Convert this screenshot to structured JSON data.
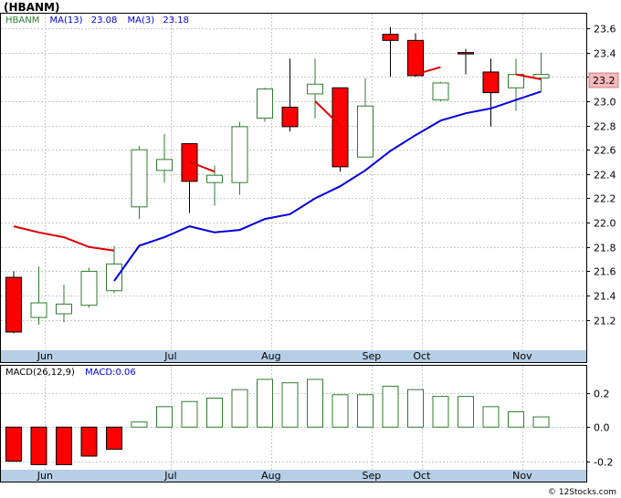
{
  "title": "(HBANM)",
  "watermark": "© 12Stocks.com",
  "colors": {
    "up": "#2e7d2e",
    "down": "#ff0000",
    "ma13": "#0000dd",
    "ma3": "#dd0000",
    "grid": "#c8c8c8",
    "axis_band": "#b7cfe6",
    "tag_bg": "#f4b9b9",
    "frame": "#000000"
  },
  "price_legend": {
    "symbol": "HBANM",
    "ma13_label": "MA(13)",
    "ma13_value": "23.08",
    "ma3_label": "MA(3)",
    "ma3_value": "23.18"
  },
  "macd_legend": {
    "label": "MACD(26,12,9)",
    "macd_label": "MACD:0.06"
  },
  "last_price_tag": "23.2",
  "chart_data": [
    {
      "type": "candlestick",
      "panel": "price",
      "ylim": [
        20.95,
        23.72
      ],
      "yticks": [
        21.2,
        21.4,
        21.6,
        21.8,
        22.0,
        22.2,
        22.4,
        22.6,
        22.8,
        23.0,
        23.2,
        23.4,
        23.6
      ],
      "ytick_labels": [
        "21.2",
        "21.4",
        "21.6",
        "21.8",
        "22.0",
        "22.2",
        "22.4",
        "22.6",
        "22.8",
        "23.0",
        "23.2",
        "23.4",
        "23.6"
      ],
      "grid": true,
      "month_ticks": [
        {
          "label": "Jun",
          "week": 1.25
        },
        {
          "label": "Jul",
          "week": 6.25
        },
        {
          "label": "Aug",
          "week": 10.25
        },
        {
          "label": "Sep",
          "week": 14.25
        },
        {
          "label": "Oct",
          "week": 16.25
        },
        {
          "label": "Nov",
          "week": 20.25
        }
      ],
      "candles": [
        {
          "o": 21.55,
          "h": 21.6,
          "l": 21.09,
          "c": 21.1
        },
        {
          "o": 21.22,
          "h": 21.64,
          "l": 21.16,
          "c": 21.34
        },
        {
          "o": 21.25,
          "h": 21.49,
          "l": 21.18,
          "c": 21.33
        },
        {
          "o": 21.32,
          "h": 21.63,
          "l": 21.3,
          "c": 21.6
        },
        {
          "o": 21.44,
          "h": 21.81,
          "l": 21.42,
          "c": 21.66
        },
        {
          "o": 22.13,
          "h": 22.63,
          "l": 22.03,
          "c": 22.6
        },
        {
          "o": 22.43,
          "h": 22.73,
          "l": 22.33,
          "c": 22.52
        },
        {
          "o": 22.65,
          "h": 22.65,
          "l": 22.08,
          "c": 22.34
        },
        {
          "o": 22.33,
          "h": 22.47,
          "l": 22.14,
          "c": 22.39
        },
        {
          "o": 22.33,
          "h": 22.83,
          "l": 22.23,
          "c": 22.79
        },
        {
          "o": 22.86,
          "h": 23.11,
          "l": 22.83,
          "c": 23.1
        },
        {
          "o": 22.95,
          "h": 23.35,
          "l": 22.75,
          "c": 22.79
        },
        {
          "o": 23.06,
          "h": 23.35,
          "l": 22.86,
          "c": 23.14
        },
        {
          "o": 23.11,
          "h": 23.11,
          "l": 22.42,
          "c": 22.46
        },
        {
          "o": 22.54,
          "h": 23.19,
          "l": 22.54,
          "c": 22.96
        },
        {
          "o": 23.55,
          "h": 23.61,
          "l": 23.2,
          "c": 23.5
        },
        {
          "o": 23.5,
          "h": 23.56,
          "l": 23.2,
          "c": 23.21
        },
        {
          "o": 23.01,
          "h": 23.16,
          "l": 23.0,
          "c": 23.15
        },
        {
          "o": 23.4,
          "h": 23.43,
          "l": 23.22,
          "c": 23.39
        },
        {
          "o": 23.24,
          "h": 23.35,
          "l": 22.79,
          "c": 23.07
        },
        {
          "o": 23.11,
          "h": 23.35,
          "l": 22.92,
          "c": 23.22
        },
        {
          "o": 23.19,
          "h": 23.4,
          "l": 23.08,
          "c": 23.22
        }
      ],
      "series": [
        {
          "name": "MA(13)",
          "values": [
            null,
            null,
            null,
            null,
            21.52,
            21.81,
            21.88,
            21.97,
            21.92,
            21.94,
            22.03,
            22.07,
            22.2,
            22.3,
            22.43,
            22.59,
            22.72,
            22.84,
            22.9,
            22.94,
            23.01,
            23.08
          ]
        },
        {
          "name": "MA(3)",
          "values": [
            21.97,
            21.92,
            21.88,
            21.8,
            21.77,
            null,
            null,
            22.5,
            22.42,
            null,
            null,
            null,
            23.0,
            22.8,
            null,
            null,
            23.22,
            23.28,
            null,
            null,
            23.22,
            23.18
          ]
        }
      ]
    },
    {
      "type": "bar",
      "panel": "macd",
      "ylim": [
        -0.25,
        0.36
      ],
      "yticks": [
        -0.2,
        0.0,
        0.2
      ],
      "ytick_labels": [
        "-0.2",
        "0.0",
        "0.2"
      ],
      "values": [
        -0.2,
        -0.22,
        -0.22,
        -0.17,
        -0.13,
        0.03,
        0.12,
        0.15,
        0.17,
        0.22,
        0.28,
        0.26,
        0.28,
        0.19,
        0.19,
        0.24,
        0.22,
        0.18,
        0.18,
        0.12,
        0.09,
        0.06
      ]
    }
  ]
}
